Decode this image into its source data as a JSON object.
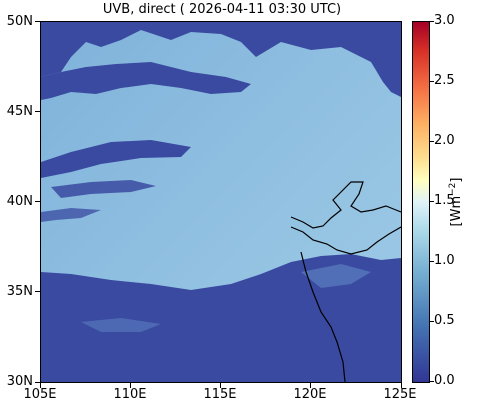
{
  "title": "UVB, direct ( 2026-04-11 03:30 UTC)",
  "y_ticks": [
    "50N",
    "45N",
    "40N",
    "35N",
    "30N"
  ],
  "x_ticks": [
    "105E",
    "110E",
    "115E",
    "120E",
    "125E"
  ],
  "colorbar": {
    "label": "[Wm",
    "label_exp": "−2",
    "label_close": "]",
    "ticks": [
      "3.0",
      "2.5",
      "2.0",
      "1.5",
      "1.0",
      "0.5",
      "0.0"
    ],
    "range": [
      0.0,
      3.0
    ],
    "colormap": "RdYlBu_r"
  },
  "map": {
    "lon_range": [
      105,
      125
    ],
    "lat_range": [
      30,
      50
    ],
    "clear_sky_color": "#8bb9dd",
    "cloud_color": "#3a4aa0",
    "coastline_color": "#000000",
    "clear_sky_value": 0.9,
    "cloud_value": 0.1
  }
}
